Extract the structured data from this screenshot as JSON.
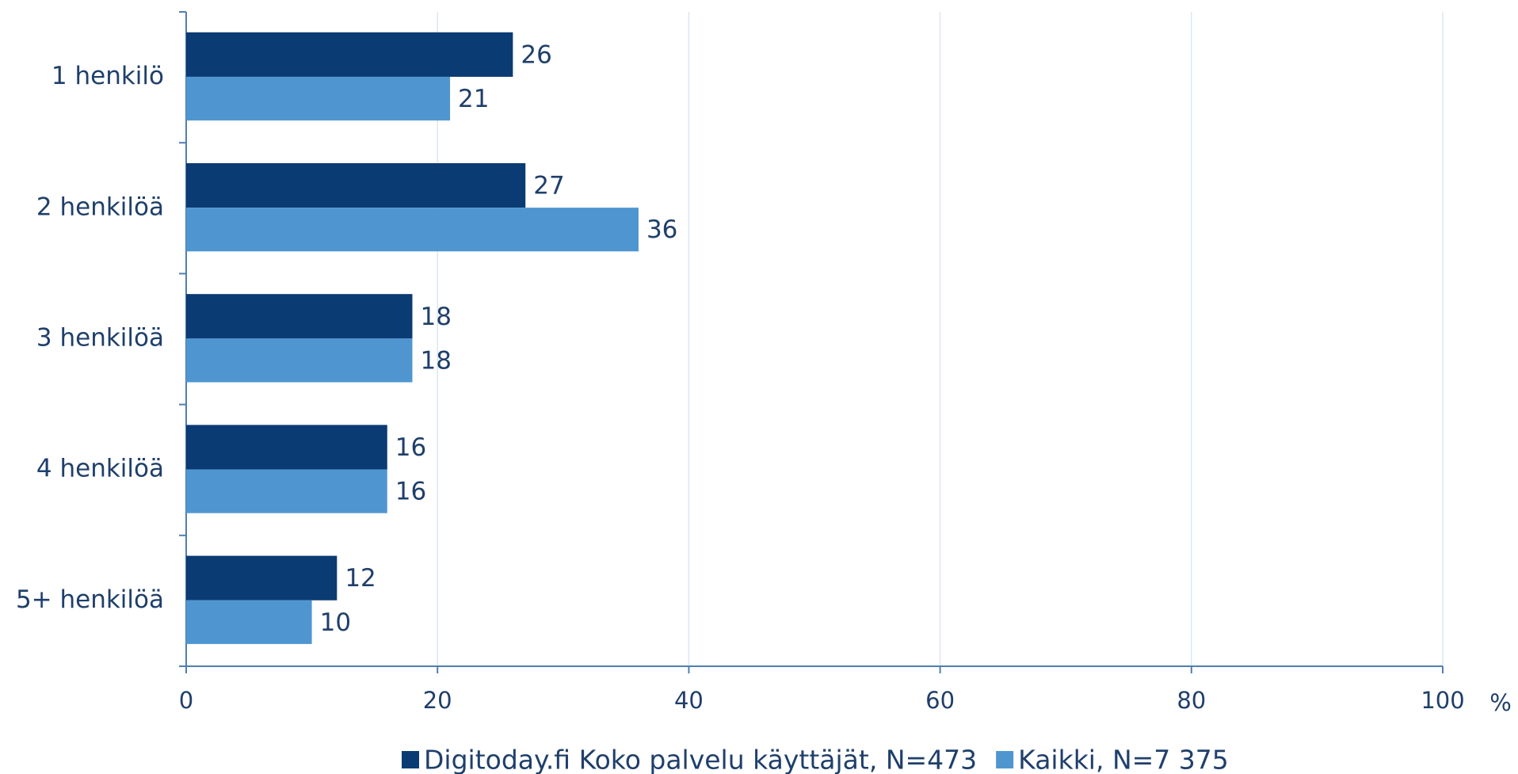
{
  "chart_data": {
    "type": "barh",
    "categories": [
      "1 henkilö",
      "2 henkilöä",
      "3 henkilöä",
      "4 henkilöä",
      "5+ henkilöä"
    ],
    "series": [
      {
        "name": "Digitoday.fi Koko palvelu käyttäjät, N=473",
        "color": "#0b3b73",
        "values": [
          26,
          27,
          18,
          16,
          12
        ]
      },
      {
        "name": "Kaikki, N=7 375",
        "color": "#4f96d0",
        "values": [
          21,
          36,
          18,
          16,
          10
        ]
      }
    ],
    "xlabel": "%",
    "xlim": [
      0,
      100
    ],
    "xticks": [
      0,
      20,
      40,
      60,
      80,
      100
    ],
    "grid": true,
    "legend": "bottom"
  }
}
